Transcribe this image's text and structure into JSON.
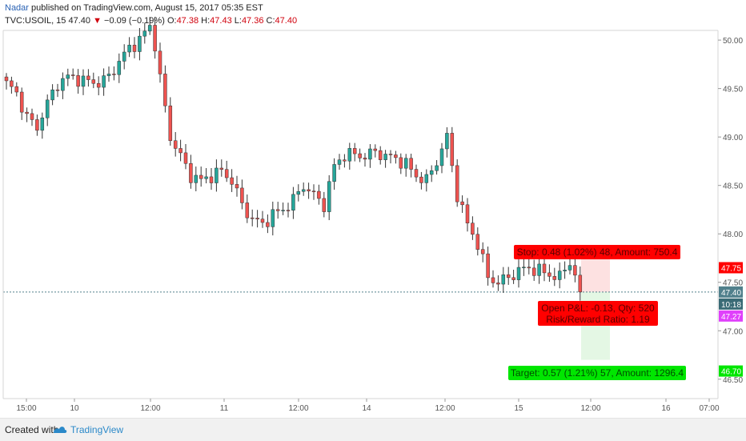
{
  "header": {
    "author": "Nadar",
    "published_text": "published on TradingView.com, August 15, 2017 05:35 EST",
    "symbol": "TVC:USOIL, 15",
    "last": "47.40",
    "change": "−0.09 (−0.19%)",
    "open_label": "O:",
    "open": "47.38",
    "high_label": "H:",
    "high": "47.43",
    "low_label": "L:",
    "low": "47.36",
    "close_label": "C:",
    "close": "47.40"
  },
  "footer": {
    "created_with": "Created with",
    "brand": "TradingView"
  },
  "colors": {
    "up": "#26a69a",
    "down": "#ef5350",
    "stop_zone": "#fde1e1",
    "target_zone": "#e4f7e4",
    "stop_label": "#ff0000",
    "target_label": "#00e600",
    "pnl_label": "#ff0000",
    "last_price_tag": "#51808c",
    "timer_tag": "#3a6b76",
    "entry_tag": "#e040fb"
  },
  "chart_data": {
    "type": "candlestick",
    "ylim": [
      46.3,
      50.1
    ],
    "y_ticks": [
      "50.00",
      "49.50",
      "49.00",
      "48.50",
      "48.00",
      "47.50",
      "47.00",
      "46.50"
    ],
    "x_ticks": [
      "15:00",
      "10",
      "12:00",
      "11",
      "12:00",
      "14",
      "12:00",
      "15",
      "12:00",
      "16",
      "07:00"
    ],
    "price_path": [
      [
        0,
        49.55
      ],
      [
        2,
        49.45
      ],
      [
        4,
        49.2
      ],
      [
        6,
        49.1
      ],
      [
        8,
        49.35
      ],
      [
        10,
        49.55
      ],
      [
        12,
        49.62
      ],
      [
        14,
        49.6
      ],
      [
        16,
        49.57
      ],
      [
        18,
        49.56
      ],
      [
        20,
        49.62
      ],
      [
        22,
        49.78
      ],
      [
        24,
        49.92
      ],
      [
        26,
        50.0
      ],
      [
        28,
        50.15
      ],
      [
        29,
        49.95
      ],
      [
        30,
        49.6
      ],
      [
        32,
        49.0
      ],
      [
        34,
        48.8
      ],
      [
        36,
        48.6
      ],
      [
        38,
        48.55
      ],
      [
        40,
        48.6
      ],
      [
        42,
        48.65
      ],
      [
        44,
        48.55
      ],
      [
        46,
        48.3
      ],
      [
        48,
        48.15
      ],
      [
        50,
        48.1
      ],
      [
        52,
        48.2
      ],
      [
        54,
        48.25
      ],
      [
        56,
        48.35
      ],
      [
        58,
        48.5
      ],
      [
        60,
        48.4
      ],
      [
        62,
        48.3
      ],
      [
        64,
        48.7
      ],
      [
        66,
        48.82
      ],
      [
        68,
        48.82
      ],
      [
        70,
        48.8
      ],
      [
        72,
        48.85
      ],
      [
        74,
        48.8
      ],
      [
        76,
        48.78
      ],
      [
        78,
        48.72
      ],
      [
        80,
        48.6
      ],
      [
        82,
        48.55
      ],
      [
        84,
        48.75
      ],
      [
        86,
        49.0
      ],
      [
        87,
        48.7
      ],
      [
        88,
        48.4
      ],
      [
        90,
        48.1
      ],
      [
        92,
        47.9
      ],
      [
        94,
        47.55
      ],
      [
        96,
        47.5
      ],
      [
        98,
        47.55
      ],
      [
        100,
        47.62
      ],
      [
        102,
        47.65
      ],
      [
        104,
        47.62
      ],
      [
        106,
        47.58
      ],
      [
        108,
        47.55
      ],
      [
        110,
        47.72
      ],
      [
        112,
        47.4
      ]
    ],
    "last_price": 47.4,
    "position": {
      "stop_text": "Stop: 0.48 (1.02%) 48, Amount: 750.4",
      "stop_price": "47.75",
      "pnl_text": "Open P&L: -0.13, Qty: 520",
      "rr_text": "Risk/Reward Ratio: 1.19",
      "target_text": "Target: 0.57 (1.21%) 57, Amount: 1296.4",
      "target_price": "46.70",
      "entry_price": "47.27",
      "last_price_label": "47.40",
      "countdown": "10:18"
    }
  }
}
